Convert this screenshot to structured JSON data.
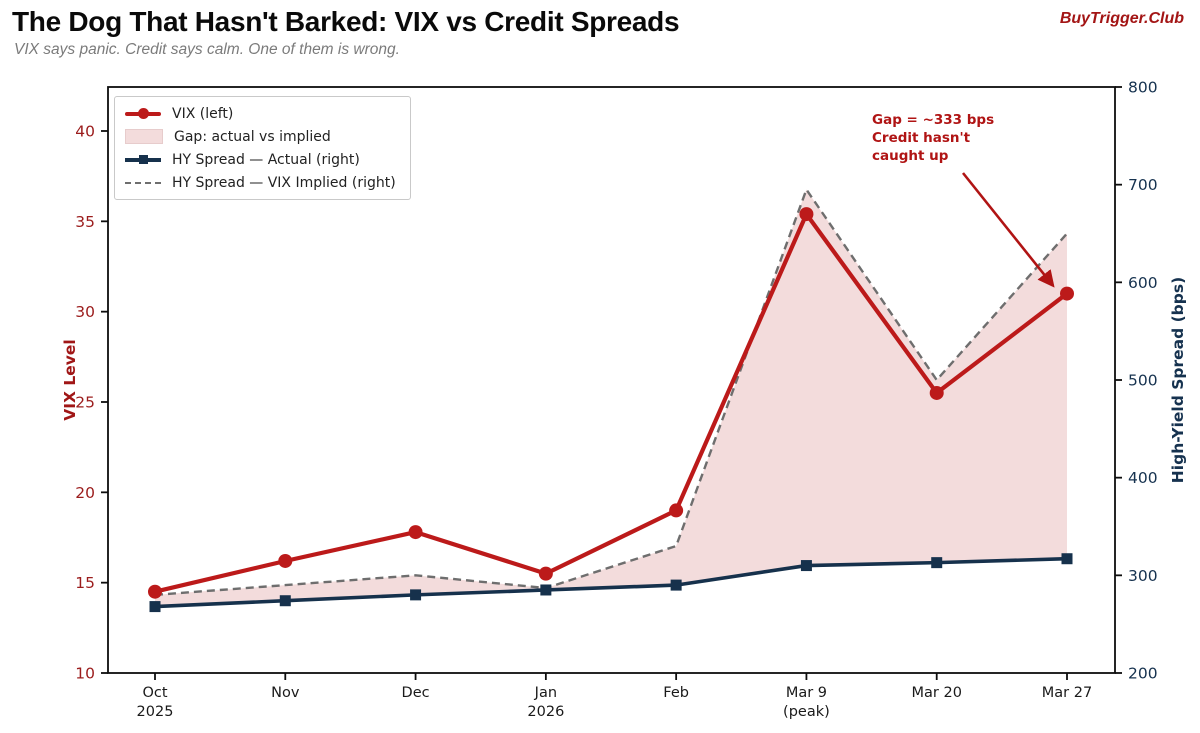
{
  "header": {
    "title": "The Dog That Hasn't Barked: VIX vs Credit Spreads",
    "subtitle": "VIX says panic. Credit says calm. One of them is wrong.",
    "brand": "BuyTrigger.Club"
  },
  "legend": {
    "position": "top-left",
    "items": [
      {
        "label": "VIX (left)",
        "marker": "red-line-circle"
      },
      {
        "label": "Gap: actual vs implied",
        "marker": "pink-area-swatch"
      },
      {
        "label": "HY Spread — Actual (right)",
        "marker": "navy-line-square"
      },
      {
        "label": "HY Spread — VIX Implied (right)",
        "marker": "gray-dashed-line"
      }
    ]
  },
  "annotation": {
    "text": "Gap = ~333 bps\nCredit hasn't\ncaught up",
    "color": "#b01414",
    "points_to": "Mar 27 VIX data point"
  },
  "chart_data": {
    "type": "line",
    "title": "The Dog That Hasn't Barked: VIX vs Credit Spreads",
    "grid": false,
    "legend_position": "upper left",
    "categories": [
      "Oct\n2025",
      "Nov",
      "Dec",
      "Jan\n2026",
      "Feb",
      "Mar 9\n(peak)",
      "Mar 20",
      "Mar 27"
    ],
    "series": [
      {
        "name": "VIX (left)",
        "axis": "left",
        "color": "#bc1a1a",
        "marker": "circle",
        "style": "solid",
        "values": [
          14.5,
          16.2,
          17.8,
          15.5,
          19.0,
          35.4,
          25.5,
          31.0
        ]
      },
      {
        "name": "HY Spread — Actual (right)",
        "axis": "right",
        "color": "#16314c",
        "marker": "square",
        "style": "solid",
        "values": [
          268,
          274,
          280,
          285,
          290,
          310,
          313,
          317
        ]
      },
      {
        "name": "HY Spread — VIX Implied (right)",
        "axis": "right",
        "color": "#6e6e6e",
        "marker": "none",
        "style": "dashed",
        "values": [
          280,
          290,
          300,
          287,
          330,
          695,
          500,
          650
        ]
      }
    ],
    "fill_between": {
      "label": "Gap: actual vs implied",
      "upper_series": "HY Spread — VIX Implied (right)",
      "lower_series": "HY Spread — Actual (right)",
      "color": "#f3dcdc"
    },
    "left_axis": {
      "label": "VIX Level",
      "ticks": [
        10,
        15,
        20,
        25,
        30,
        35,
        40
      ],
      "range": [
        10,
        42.4
      ],
      "color": "#9b1c1c"
    },
    "right_axis": {
      "label": "High-Yield Spread (bps)",
      "ticks": [
        200,
        300,
        400,
        500,
        600,
        700,
        800
      ],
      "range": [
        200,
        800
      ],
      "color": "#16324f"
    },
    "gap_at_last_point_bps": 333
  }
}
